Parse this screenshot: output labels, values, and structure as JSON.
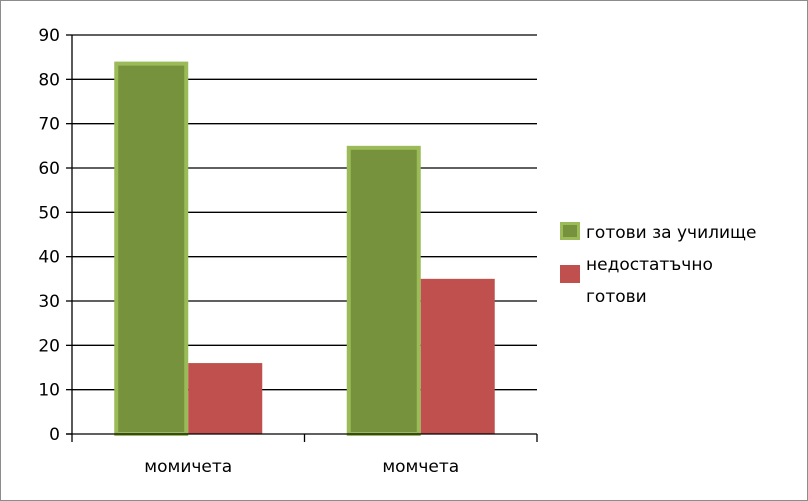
{
  "chart_data": {
    "type": "bar",
    "categories": [
      "момичета",
      "момчета"
    ],
    "series": [
      {
        "name": "готови за училище",
        "values": [
          84,
          65
        ],
        "color": "#76923c",
        "border": "#9bbb59"
      },
      {
        "name": "недостатъчно готови",
        "values": [
          16,
          35
        ],
        "color": "#c0504d"
      }
    ],
    "legend_lines": [
      [
        "готови за училище"
      ],
      [
        "недостатъчно",
        "готови"
      ]
    ],
    "ylim": [
      0,
      90
    ],
    "yticks": [
      0,
      10,
      20,
      30,
      40,
      50,
      60,
      70,
      80,
      90
    ],
    "title": "",
    "xlabel": "",
    "ylabel": "",
    "grid": true,
    "legend_position": "right"
  }
}
